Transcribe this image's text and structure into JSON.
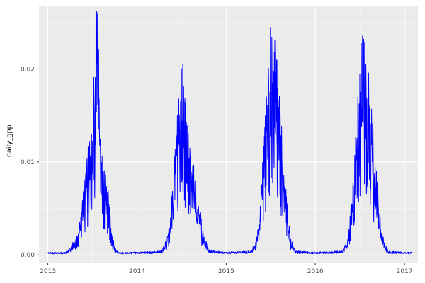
{
  "chart_data": {
    "type": "line",
    "title": "",
    "xlabel": "",
    "ylabel": "daily_gpp",
    "series_name": "daily_gpp",
    "line_color": "#0000ff",
    "panel_background": "#ebebeb",
    "grid_major_color": "#ffffff",
    "grid_minor_color": "#f5f5f5",
    "axis_text_color": "#4d4d4d",
    "tick_mark_color": "#333333",
    "grid": true,
    "legend": "none",
    "x_ticks": [
      2013,
      2014,
      2015,
      2016,
      2017
    ],
    "x_tick_labels": [
      "2013",
      "2014",
      "2015",
      "2016",
      "2017"
    ],
    "x_minor_ticks": [
      2013.5,
      2014.5,
      2015.5,
      2016.5
    ],
    "y_ticks": [
      0.0,
      0.01,
      0.02
    ],
    "y_tick_labels": [
      "0.00",
      "0.01",
      "0.02"
    ],
    "y_minor_ticks": [
      0.005,
      0.015,
      0.025
    ],
    "xlim": [
      2012.9,
      2017.15
    ],
    "ylim": [
      -0.0009,
      0.0268
    ],
    "data_start": 2013.0,
    "data_end": 2017.08,
    "seasonal_profile": [
      {
        "year": 2013,
        "peak_time": 2013.56,
        "peak_value": 0.0262,
        "points": [
          [
            0.0,
            0.0002
          ],
          [
            0.2,
            0.0002
          ],
          [
            0.25,
            0.0005
          ],
          [
            0.3,
            0.0012
          ],
          [
            0.35,
            0.003
          ],
          [
            0.4,
            0.007
          ],
          [
            0.45,
            0.011
          ],
          [
            0.49,
            0.015
          ],
          [
            0.52,
            0.019
          ],
          [
            0.55,
            0.0262
          ],
          [
            0.57,
            0.021
          ],
          [
            0.6,
            0.011
          ],
          [
            0.63,
            0.0095
          ],
          [
            0.66,
            0.008
          ],
          [
            0.69,
            0.0055
          ],
          [
            0.72,
            0.002
          ],
          [
            0.75,
            0.0005
          ],
          [
            0.8,
            0.0002
          ],
          [
            1.0,
            0.0002
          ]
        ]
      },
      {
        "year": 2014,
        "peak_time": 2014.53,
        "peak_value": 0.0205,
        "points": [
          [
            0.0,
            0.0002
          ],
          [
            0.28,
            0.0003
          ],
          [
            0.33,
            0.0012
          ],
          [
            0.37,
            0.004
          ],
          [
            0.41,
            0.009
          ],
          [
            0.45,
            0.014
          ],
          [
            0.48,
            0.017
          ],
          [
            0.51,
            0.0205
          ],
          [
            0.54,
            0.016
          ],
          [
            0.57,
            0.013
          ],
          [
            0.6,
            0.011
          ],
          [
            0.64,
            0.009
          ],
          [
            0.68,
            0.006
          ],
          [
            0.72,
            0.004
          ],
          [
            0.76,
            0.0015
          ],
          [
            0.8,
            0.0004
          ],
          [
            1.0,
            0.0002
          ]
        ]
      },
      {
        "year": 2015,
        "peak_time": 2015.51,
        "peak_value": 0.026,
        "points": [
          [
            0.0,
            0.0002
          ],
          [
            0.28,
            0.0003
          ],
          [
            0.33,
            0.001
          ],
          [
            0.37,
            0.004
          ],
          [
            0.41,
            0.01
          ],
          [
            0.44,
            0.015
          ],
          [
            0.47,
            0.019
          ],
          [
            0.51,
            0.026
          ],
          [
            0.54,
            0.023
          ],
          [
            0.57,
            0.02
          ],
          [
            0.6,
            0.016
          ],
          [
            0.63,
            0.012
          ],
          [
            0.66,
            0.008
          ],
          [
            0.7,
            0.004
          ],
          [
            0.73,
            0.0012
          ],
          [
            0.78,
            0.0003
          ],
          [
            1.0,
            0.0002
          ]
        ]
      },
      {
        "year": 2016,
        "peak_time": 2016.53,
        "peak_value": 0.0245,
        "points": [
          [
            0.0,
            0.0002
          ],
          [
            0.3,
            0.0003
          ],
          [
            0.35,
            0.001
          ],
          [
            0.39,
            0.004
          ],
          [
            0.43,
            0.009
          ],
          [
            0.47,
            0.015
          ],
          [
            0.5,
            0.0205
          ],
          [
            0.53,
            0.0245
          ],
          [
            0.56,
            0.021
          ],
          [
            0.6,
            0.019
          ],
          [
            0.63,
            0.015
          ],
          [
            0.66,
            0.011
          ],
          [
            0.7,
            0.007
          ],
          [
            0.74,
            0.003
          ],
          [
            0.78,
            0.0008
          ],
          [
            0.82,
            0.0003
          ],
          [
            1.0,
            0.0002
          ]
        ]
      }
    ],
    "noise": {
      "seed": 42,
      "min_factor": 0.5,
      "max_factor": 1.06,
      "dip_prob": 0.18,
      "dip_factor": 0.55,
      "threshold": 0.0012
    }
  }
}
